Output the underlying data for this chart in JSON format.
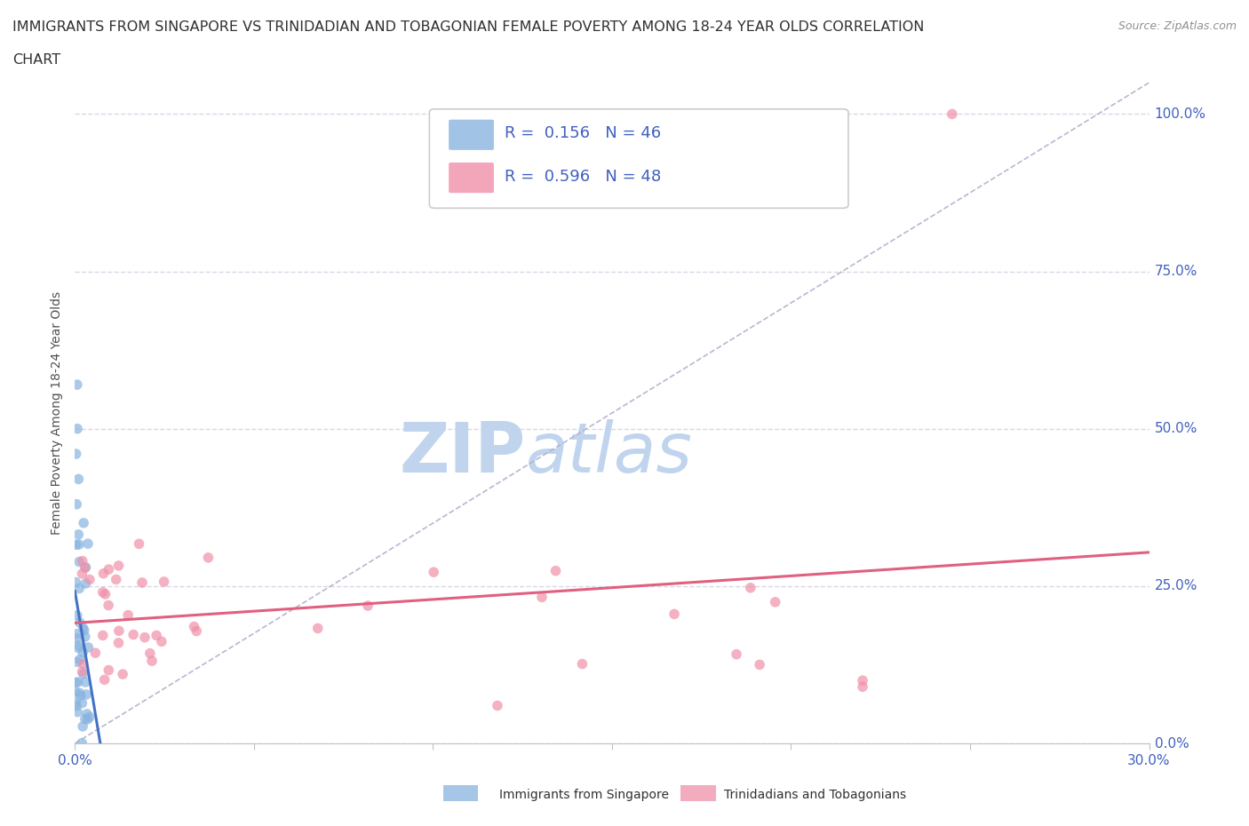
{
  "title_line1": "IMMIGRANTS FROM SINGAPORE VS TRINIDADIAN AND TOBAGONIAN FEMALE POVERTY AMONG 18-24 YEAR OLDS CORRELATION",
  "title_line2": "CHART",
  "source": "Source: ZipAtlas.com",
  "ylabel": "Female Poverty Among 18-24 Year Olds",
  "legend_entries": [
    {
      "label": "R =  0.156   N = 46",
      "color": "#a8c4e8"
    },
    {
      "label": "R =  0.596   N = 48",
      "color": "#f4a8bc"
    }
  ],
  "legend_label_singapore": "Immigrants from Singapore",
  "legend_label_trinidadian": "Trinidadians and Tobagonians",
  "singapore_color": "#88b4e0",
  "trinidadian_color": "#f090a8",
  "regression_singapore_color": "#4472c4",
  "regression_trinidadian_color": "#e06080",
  "diagonal_color": "#b0b0cc",
  "xlim": [
    0.0,
    0.3
  ],
  "ylim": [
    0.0,
    1.05
  ],
  "xtick_positions": [
    0.0,
    0.05,
    0.1,
    0.15,
    0.2,
    0.25,
    0.3
  ],
  "ytick_positions": [
    0.0,
    0.25,
    0.5,
    0.75,
    1.0
  ],
  "watermark_zip": "ZIP",
  "watermark_atlas": "atlas",
  "watermark_color": "#c0d4ee",
  "background_color": "#ffffff",
  "grid_color": "#d8d8e8",
  "title_color": "#303030",
  "axis_label_color": "#505050",
  "tick_label_color": "#4060c0",
  "title_fontsize": 11.5,
  "source_fontsize": 9,
  "axis_label_fontsize": 10,
  "tick_fontsize": 11
}
